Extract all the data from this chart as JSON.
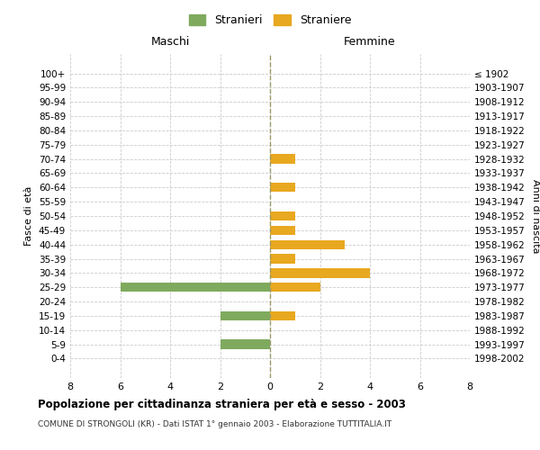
{
  "age_groups": [
    "100+",
    "95-99",
    "90-94",
    "85-89",
    "80-84",
    "75-79",
    "70-74",
    "65-69",
    "60-64",
    "55-59",
    "50-54",
    "45-49",
    "40-44",
    "35-39",
    "30-34",
    "25-29",
    "20-24",
    "15-19",
    "10-14",
    "5-9",
    "0-4"
  ],
  "birth_years": [
    "≤ 1902",
    "1903-1907",
    "1908-1912",
    "1913-1917",
    "1918-1922",
    "1923-1927",
    "1928-1932",
    "1933-1937",
    "1938-1942",
    "1943-1947",
    "1948-1952",
    "1953-1957",
    "1958-1962",
    "1963-1967",
    "1968-1972",
    "1973-1977",
    "1978-1982",
    "1983-1987",
    "1988-1992",
    "1993-1997",
    "1998-2002"
  ],
  "maschi": [
    0,
    0,
    0,
    0,
    0,
    0,
    0,
    0,
    0,
    0,
    0,
    0,
    0,
    0,
    0,
    6,
    0,
    2,
    0,
    2,
    0
  ],
  "femmine": [
    0,
    0,
    0,
    0,
    0,
    0,
    1,
    0,
    1,
    0,
    1,
    1,
    3,
    1,
    4,
    2,
    0,
    1,
    0,
    0,
    0
  ],
  "color_maschi": "#7faa5e",
  "color_femmine": "#e8a820",
  "xlim": 8,
  "title": "Popolazione per cittadinanza straniera per età e sesso - 2003",
  "subtitle": "COMUNE DI STRONGOLI (KR) - Dati ISTAT 1° gennaio 2003 - Elaborazione TUTTITALIA.IT",
  "ylabel_left": "Fasce di età",
  "ylabel_right": "Anni di nascita",
  "label_maschi": "Stranieri",
  "label_femmine": "Straniere",
  "header_maschi": "Maschi",
  "header_femmine": "Femmine",
  "background_color": "#ffffff",
  "grid_color": "#cccccc"
}
